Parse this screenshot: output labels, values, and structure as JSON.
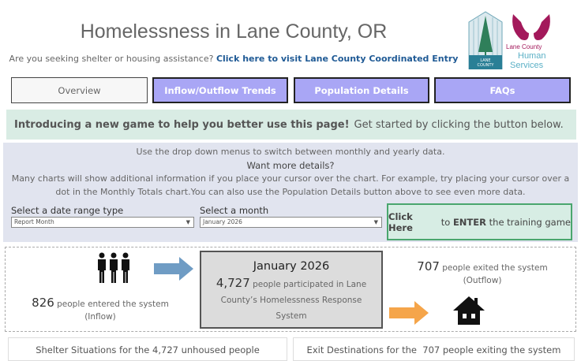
{
  "header": {
    "title": "Homelessness in Lane County, OR",
    "subtitle_prefix": "Are you seeking shelter or housing assistance?",
    "subtitle_link": "Click here to visit Lane County Coordinated Entry"
  },
  "logos": {
    "lane_county": "LANE COUNTY OREGON",
    "human_services": "Lane County Human Services"
  },
  "nav": [
    {
      "label": "Overview"
    },
    {
      "label": "Inflow/Outflow Trends"
    },
    {
      "label": "Population Details"
    },
    {
      "label": "FAQs"
    }
  ],
  "banner": {
    "bold": "Introducing a new game to help you better use this page!",
    "text": "Get started by clicking the button below."
  },
  "info": {
    "lines": [
      "Use the drop down menus to switch between monthly and yearly data.",
      "Want more details?",
      "Many charts will show additional information if you place your cursor over the chart. For example, try placing your cursor over a",
      "dot in the Monthly Totals chart.You can also use the Population Details button above to see even more data."
    ]
  },
  "filters": {
    "date_range_label": "Select a date range type",
    "date_range_value": "Report Month",
    "month_label": "Select a month",
    "month_value": "January 2026"
  },
  "game_button": {
    "part1": "Click Here",
    "part2": " to ",
    "part3": "ENTER",
    "part4": " the training game"
  },
  "stats": {
    "inflow_count": "826",
    "inflow_text": " people entered the system",
    "inflow_label": "(Inflow)",
    "month": "January 2026",
    "participants": "4,727",
    "participants_text": " people participated in Lane County’s Homelessness Response System",
    "outflow_count": "707",
    "outflow_text": " people exited the system",
    "outflow_label": "(Outflow)"
  },
  "sections": {
    "shelter": "Shelter Situations for the 4,727 unhoused people",
    "exit": "Exit Destinations for the  707 people exiting the system"
  },
  "colors": {
    "nav_active": "#a9a6f5",
    "banner": "#d9ece4",
    "info_bg": "#e1e4ef",
    "game_border": "#4aa66e",
    "inflow_arrow": "#6f9cc4",
    "outflow_arrow": "#f5a54a",
    "link": "#1f5a95"
  }
}
